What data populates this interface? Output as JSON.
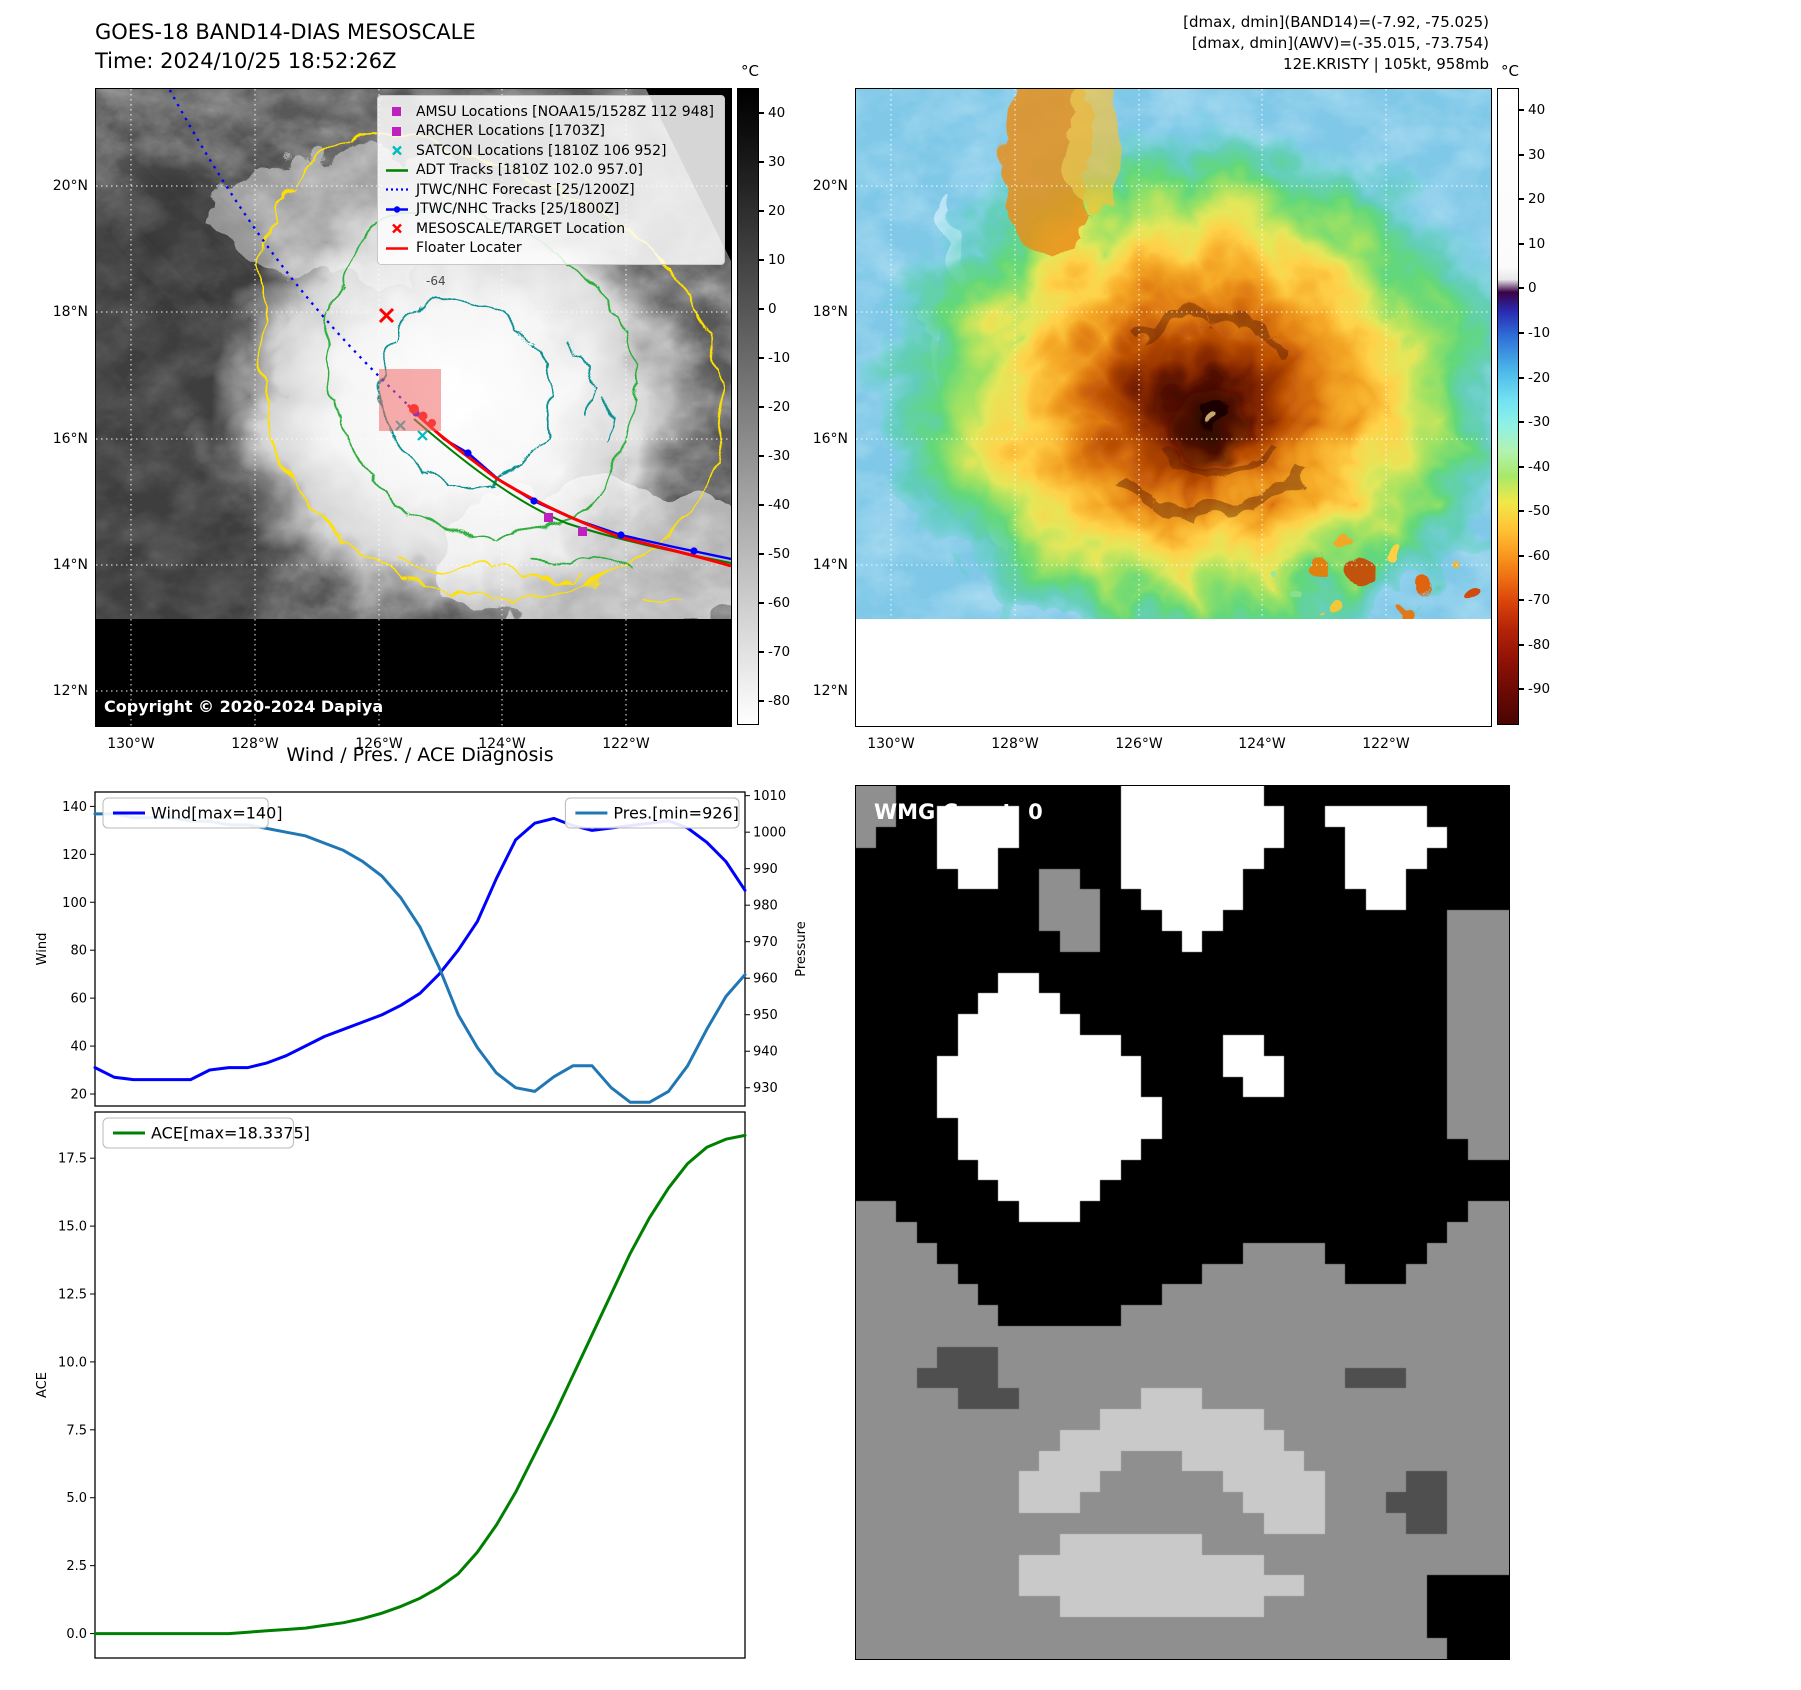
{
  "panel_tl": {
    "title_line1": "GOES-18 BAND14-DIAS MESOSCALE",
    "title_line2": "Time: 2024/10/25 18:52:26Z",
    "copyright": "Copyright © 2020-2024 Dapiya",
    "contour_label": "-64",
    "colorbar": {
      "unit": "°C",
      "ticks": [
        40,
        30,
        20,
        10,
        0,
        -10,
        -20,
        -30,
        -40,
        -50,
        -60,
        -70,
        -80
      ]
    },
    "legend": [
      {
        "label": "AMSU Locations [NOAA15/1528Z 112 948]",
        "marker": "square",
        "color": "#c020c0"
      },
      {
        "label": "ARCHER Locations [1703Z]",
        "marker": "square",
        "color": "#c020c0"
      },
      {
        "label": "SATCON Locations [1810Z 106 952]",
        "marker": "x",
        "color": "#00bcbc"
      },
      {
        "label": "ADT Tracks [1810Z 102.0 957.0]",
        "marker": "line",
        "color": "#008000"
      },
      {
        "label": "JTWC/NHC Forecast [25/1200Z]",
        "marker": "dotted",
        "color": "#0000ff"
      },
      {
        "label": "JTWC/NHC Tracks [25/1800Z]",
        "marker": "line-dot",
        "color": "#0000ff"
      },
      {
        "label": "MESOSCALE/TARGET Location",
        "marker": "x",
        "color": "#ff0000"
      },
      {
        "label": "Floater Locater",
        "marker": "line",
        "color": "#ff0000"
      }
    ]
  },
  "panel_tr": {
    "header_line1": "[dmax, dmin](BAND14)=(-7.92, -75.025)",
    "header_line2": "[dmax, dmin](AWV)=(-35.015, -73.754)",
    "header_line3": "12E.KRISTY | 105kt, 958mb",
    "colorbar": {
      "unit": "°C",
      "ticks": [
        40,
        30,
        20,
        10,
        0,
        -10,
        -20,
        -30,
        -40,
        -50,
        -60,
        -70,
        -80,
        -90
      ]
    }
  },
  "map_ticks": {
    "lon": [
      "130°W",
      "128°W",
      "126°W",
      "124°W",
      "122°W"
    ],
    "lat": [
      "20°N",
      "18°N",
      "16°N",
      "14°N",
      "12°N"
    ]
  },
  "charts": {
    "section_title": "Wind / Pres. / ACE Diagnosis"
  },
  "chart_data": [
    {
      "type": "line",
      "title": "Wind / Pres. / ACE Diagnosis",
      "left_axis": {
        "label": "Wind",
        "lim": [
          15,
          146
        ],
        "ticks": [
          "20",
          "40",
          "60",
          "80",
          "100",
          "120",
          "140"
        ]
      },
      "right_axis": {
        "label": "Pressure",
        "lim": [
          925,
          1011
        ],
        "ticks": [
          "930",
          "940",
          "950",
          "960",
          "970",
          "980",
          "990",
          "1000",
          "1010"
        ]
      },
      "series": [
        {
          "name": "Wind[max=140]",
          "color": "#0000ff",
          "axis": "left",
          "values": [
            31,
            27,
            26,
            26,
            26,
            26,
            30,
            31,
            31,
            33,
            36,
            40,
            44,
            47,
            50,
            53,
            57,
            62,
            70,
            80,
            92,
            110,
            126,
            133,
            135,
            132,
            130,
            131,
            132,
            133,
            134,
            131,
            125,
            117,
            105
          ]
        },
        {
          "name": "Pres.[min=926]",
          "color": "#1f77b4",
          "axis": "right",
          "values": [
            1005,
            1005,
            1004,
            1004,
            1004,
            1003,
            1003,
            1002,
            1002,
            1001,
            1000,
            999,
            997,
            995,
            992,
            988,
            982,
            974,
            963,
            950,
            941,
            934,
            930,
            929,
            933,
            936,
            936,
            930,
            926,
            926,
            929,
            936,
            946,
            955,
            961
          ]
        }
      ]
    },
    {
      "type": "line",
      "left_axis": {
        "label": "ACE",
        "lim": [
          -0.9,
          19.2
        ],
        "ticks": [
          "0.0",
          "2.5",
          "5.0",
          "7.5",
          "10.0",
          "12.5",
          "15.0",
          "17.5"
        ]
      },
      "series": [
        {
          "name": "ACE[max=18.3375]",
          "color": "#008000",
          "axis": "left",
          "values": [
            0,
            0,
            0,
            0,
            0,
            0,
            0,
            0,
            0.05,
            0.1,
            0.15,
            0.2,
            0.3,
            0.4,
            0.55,
            0.75,
            1.0,
            1.3,
            1.7,
            2.2,
            3.0,
            4.0,
            5.2,
            6.6,
            8.0,
            9.5,
            11.0,
            12.5,
            14.0,
            15.3,
            16.4,
            17.3,
            17.9,
            18.2,
            18.3375
          ]
        }
      ]
    }
  ],
  "panel_br": {
    "wmg_label": "WMG Count: 0",
    "pixels": {
      "colors": {
        "k": "#000000",
        "d": "#4f4f4f",
        "g": "#8f8f8f",
        "l": "#c9c9c9",
        "w": "#ffffff"
      },
      "rows": [
        "ggkkkkkkkkkkkwwwwwwwkkkkkkkkkkkk",
        "ggkkwwwwkkkkkwwwwwwwwkkwwwwwkkkk",
        "gkkkwwwwkkkkkwwwwwwwwkkkwwwwwkkk",
        "kkkkwwwkkkkkkwwwwwwwkkkkwwwwkkkk",
        "kkkkkwwkkggkkwwwwwwkkkkkwwwkkkkk",
        "kkkkkkkkkgggkkwwwwwkkkkkkwwkkkkk",
        "kkkkkkkkkgggkkkwwwkkkkkkkkkkkggg",
        "kkkkkkkkkkggkkkkwkkkkkkkkkkkkggg",
        "kkkkkkkkkkkkkkkkkkkkkkkkkkkkkggg",
        "kkkkkkkwwkkkkkkkkkkkkkkkkkkkkggg",
        "kkkkkkwwwwkkkkkkkkkkkkkkkkkkkggg",
        "kkkkkwwwwwwkkkkkkkkkkkkkkkkkkggg",
        "kkkkkwwwwwwwwkkkkkwwkkkkkkkkkggg",
        "kkkkwwwwwwwwwwkkkkwwwkkkkkkkkggg",
        "kkkkwwwwwwwwwwkkkkkwwkkkkkkkkggg",
        "kkkkwwwwwwwwwwwkkkkkkkkkkkkkkggg",
        "kkkkkwwwwwwwwwwkkkkkkkkkkkkkkggg",
        "kkkkkwwwwwwwwwkkkkkkkkkkkkkkkkgg",
        "kkkkkkwwwwwwwkkkkkkkkkkkkkkkkkkk",
        "kkkkkkkwwwwwkkkkkkkkkkkkkkkkkkkk",
        "ggkkkkkkwwwkkkkkkkkkkkkkkkkkkkgg",
        "gggkkkkkkkkkkkkkkkkkkkkkkkkkkggg",
        "ggggkkkkkkkkkkkkkkkggggkkkkkgggg",
        "gggggkkkkkkkkkkkkgggggggkkkggggg",
        "ggggggkkkkkkkkkggggggggggggggggg",
        "gggggggkkkkkkggggggggggggggggggg",
        "gggggggggggggggggggggggggggggggg",
        "ggggdddggggggggggggggggggggggggg",
        "gggddddgggggggggggggggggdddggggg",
        "gggggdddgggggglllggggggggggggggg",
        "ggggggggggggllllllllgggggggggggg",
        "gggggggggglllllllllllggggggggggg",
        "gggggggggllllgggllllllgggggggggg",
        "ggggggggllllgggggglllllggggddggg",
        "gggggggglllggggggggllllgggdddggg",
        "gggggggggggggggggggglllggggddggg",
        "gggggggggglllllllggggggggggggggg",
        "ggggggggllllllllllllgggggggggggg",
        "ggggggggllllllllllllllggggggkkkk",
        "ggggggggggllllllllllggggggggkkkk",
        "ggggggggggggggggggggggggggggkkkk",
        "gggggggggggggggggggggggggggggkkk"
      ]
    }
  }
}
